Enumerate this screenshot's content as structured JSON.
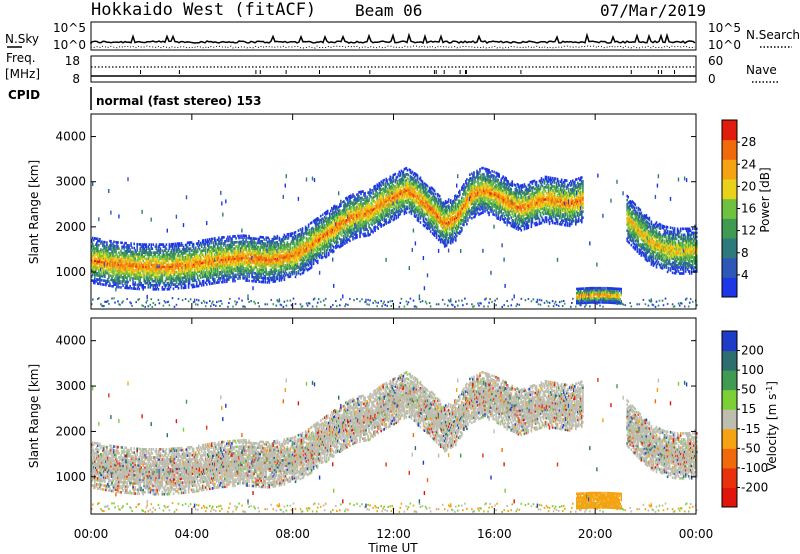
{
  "header": {
    "title": "Hokkaido West (fitACF)",
    "beam": "Beam 06",
    "date": "07/Mar/2019"
  },
  "noise_panel": {
    "left_label": "N.Sky",
    "right_label": "N.Search",
    "left_ticks": [
      "10^5",
      "10^0"
    ],
    "right_ticks": [
      "10^5",
      "10^0"
    ]
  },
  "freq_panel": {
    "left_label_1": "Freq.",
    "left_label_2": "[MHz]",
    "right_label": "Nave",
    "left_ticks": [
      "18",
      "8"
    ],
    "right_ticks": [
      "60",
      "0"
    ]
  },
  "cpid": {
    "label": "CPID",
    "value": "normal (fast stereo) 153"
  },
  "x_axis": {
    "title": "Time UT",
    "ticks": [
      "00:00",
      "04:00",
      "08:00",
      "12:00",
      "16:00",
      "20:00",
      "00:00"
    ]
  },
  "colors": {
    "velocity_gray": "#bdbdb0"
  },
  "chart_data": [
    {
      "type": "heatmap",
      "name": "power",
      "xlabel": "Time UT",
      "ylabel": "Slant Range [km]",
      "xlim": [
        0,
        24
      ],
      "ylim": [
        180,
        4500
      ],
      "yticks": [
        1000,
        2000,
        3000,
        4000
      ],
      "colorbar": {
        "label": "Power [dB]",
        "ticks": [
          4,
          8,
          12,
          16,
          20,
          24,
          28
        ],
        "range": [
          0,
          32
        ],
        "colors": [
          "#1e37e6",
          "#2e58b8",
          "#2e7a7a",
          "#3f9a52",
          "#6fc23f",
          "#e8d21a",
          "#f5a312",
          "#f06a0c",
          "#e01d0c"
        ]
      },
      "echo_bands": [
        {
          "t": [
            0.0,
            0.5,
            1.0,
            2.0,
            3.0,
            4.0,
            5.0,
            6.0,
            7.0,
            8.0,
            8.5,
            9.0,
            9.5,
            10.0,
            10.5,
            11.0,
            11.5,
            12.0,
            12.5,
            13.0,
            13.5,
            14.0,
            14.5,
            15.0,
            15.5,
            16.0,
            16.5,
            17.0,
            17.5,
            18.0,
            18.5,
            19.0,
            19.5
          ],
          "center_km": [
            1250,
            1200,
            1150,
            1100,
            1100,
            1150,
            1250,
            1300,
            1250,
            1350,
            1500,
            1700,
            1900,
            2100,
            2250,
            2300,
            2500,
            2650,
            2800,
            2600,
            2350,
            2050,
            2200,
            2650,
            2800,
            2700,
            2550,
            2400,
            2500,
            2600,
            2550,
            2500,
            2600
          ],
          "width_km": 500,
          "peak_db": 26
        },
        {
          "t": [
            21.2,
            21.7,
            22.2,
            22.7,
            23.2,
            23.7,
            24.0
          ],
          "center_km": [
            2200,
            1900,
            1650,
            1500,
            1450,
            1450,
            1450
          ],
          "width_km": 500,
          "peak_db": 22
        },
        {
          "t": [
            19.2,
            19.8,
            20.4,
            21.0
          ],
          "center_km": [
            450,
            470,
            470,
            450
          ],
          "width_km": 160,
          "peak_db": 26
        }
      ]
    },
    {
      "type": "heatmap",
      "name": "velocity",
      "xlabel": "Time UT",
      "ylabel": "Slant Range [km]",
      "xlim": [
        0,
        24
      ],
      "ylim": [
        180,
        4500
      ],
      "yticks": [
        1000,
        2000,
        3000,
        4000
      ],
      "colorbar": {
        "label": "Velocity [m s^-1]",
        "ticks": [
          "200",
          "100",
          "50",
          "15",
          "-15",
          "-50",
          "-100",
          "-200"
        ],
        "colors": [
          "#1e3cc8",
          "#2e6e6e",
          "#3f9a52",
          "#7cd036",
          "#bdbdb0",
          "#f5a312",
          "#f06a0c",
          "#e8320c",
          "#e0150c"
        ]
      },
      "dominant_velocity": "-15 to 15",
      "near_range_velocity": "-50"
    }
  ]
}
